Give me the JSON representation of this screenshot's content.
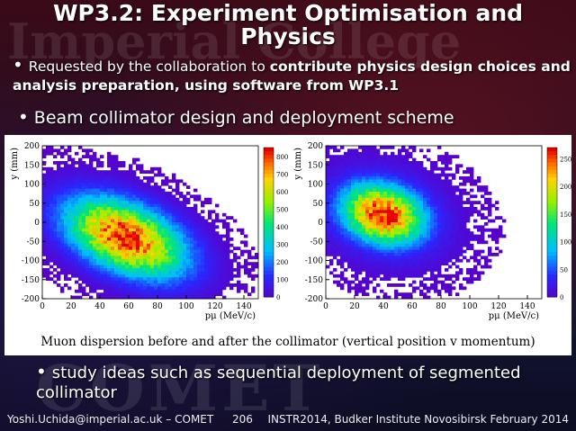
{
  "slide": {
    "title_line1": "WP3.2: Experiment Optimisation and",
    "title_line2": "Physics",
    "bullet1_plain": "Requested by the collaboration to ",
    "bullet1_bold": "contribute physics design choices and analysis preparation, using software from WP3.1",
    "bullet2": "Beam collimator design and deployment scheme",
    "bullet3": "study ideas such as sequential deployment of segmented collimator",
    "caption": "Muon dispersion before and after the collimator (vertical position v momentum)"
  },
  "watermark": {
    "line1": "Imperial College",
    "line2": "COMET"
  },
  "footer": {
    "email": "Yoshi.Uchida@imperial.ac.uk – COMET",
    "page": "206",
    "event": "INSTR2014, Budker Institute Novosibirsk February 2014"
  },
  "chart_data": [
    {
      "type": "heatmap",
      "title": "",
      "xlabel": "pμ (MeV/c)",
      "ylabel": "y (mm)",
      "xlim": [
        0,
        150
      ],
      "ylim": [
        -200,
        200
      ],
      "x_ticks": [
        0,
        20,
        40,
        60,
        80,
        100,
        120,
        140
      ],
      "y_ticks": [
        200,
        150,
        100,
        50,
        0,
        -50,
        -100,
        -150,
        -200
      ],
      "colorbar_ticks": [
        800,
        700,
        600,
        500,
        400,
        300,
        200,
        100,
        0
      ],
      "colorbar_max": 850,
      "peak": {
        "x": 58,
        "y": -40,
        "value": 850
      },
      "spread": {
        "sx": 28,
        "sy": 70,
        "rho": -0.45
      }
    },
    {
      "type": "heatmap",
      "title": "",
      "xlabel": "pμ (MeV/c)",
      "ylabel": "y (mm)",
      "xlim": [
        0,
        150
      ],
      "ylim": [
        -200,
        200
      ],
      "x_ticks": [
        0,
        20,
        40,
        60,
        80,
        100,
        120,
        140
      ],
      "y_ticks": [
        200,
        150,
        100,
        50,
        0,
        -50,
        -100,
        -150,
        -200
      ],
      "colorbar_ticks": [
        250,
        200,
        150,
        100,
        50,
        0
      ],
      "colorbar_max": 270,
      "peak": {
        "x": 40,
        "y": 20,
        "value": 270
      },
      "spread": {
        "sx": 20,
        "sy": 55,
        "rho": -0.2
      }
    }
  ]
}
